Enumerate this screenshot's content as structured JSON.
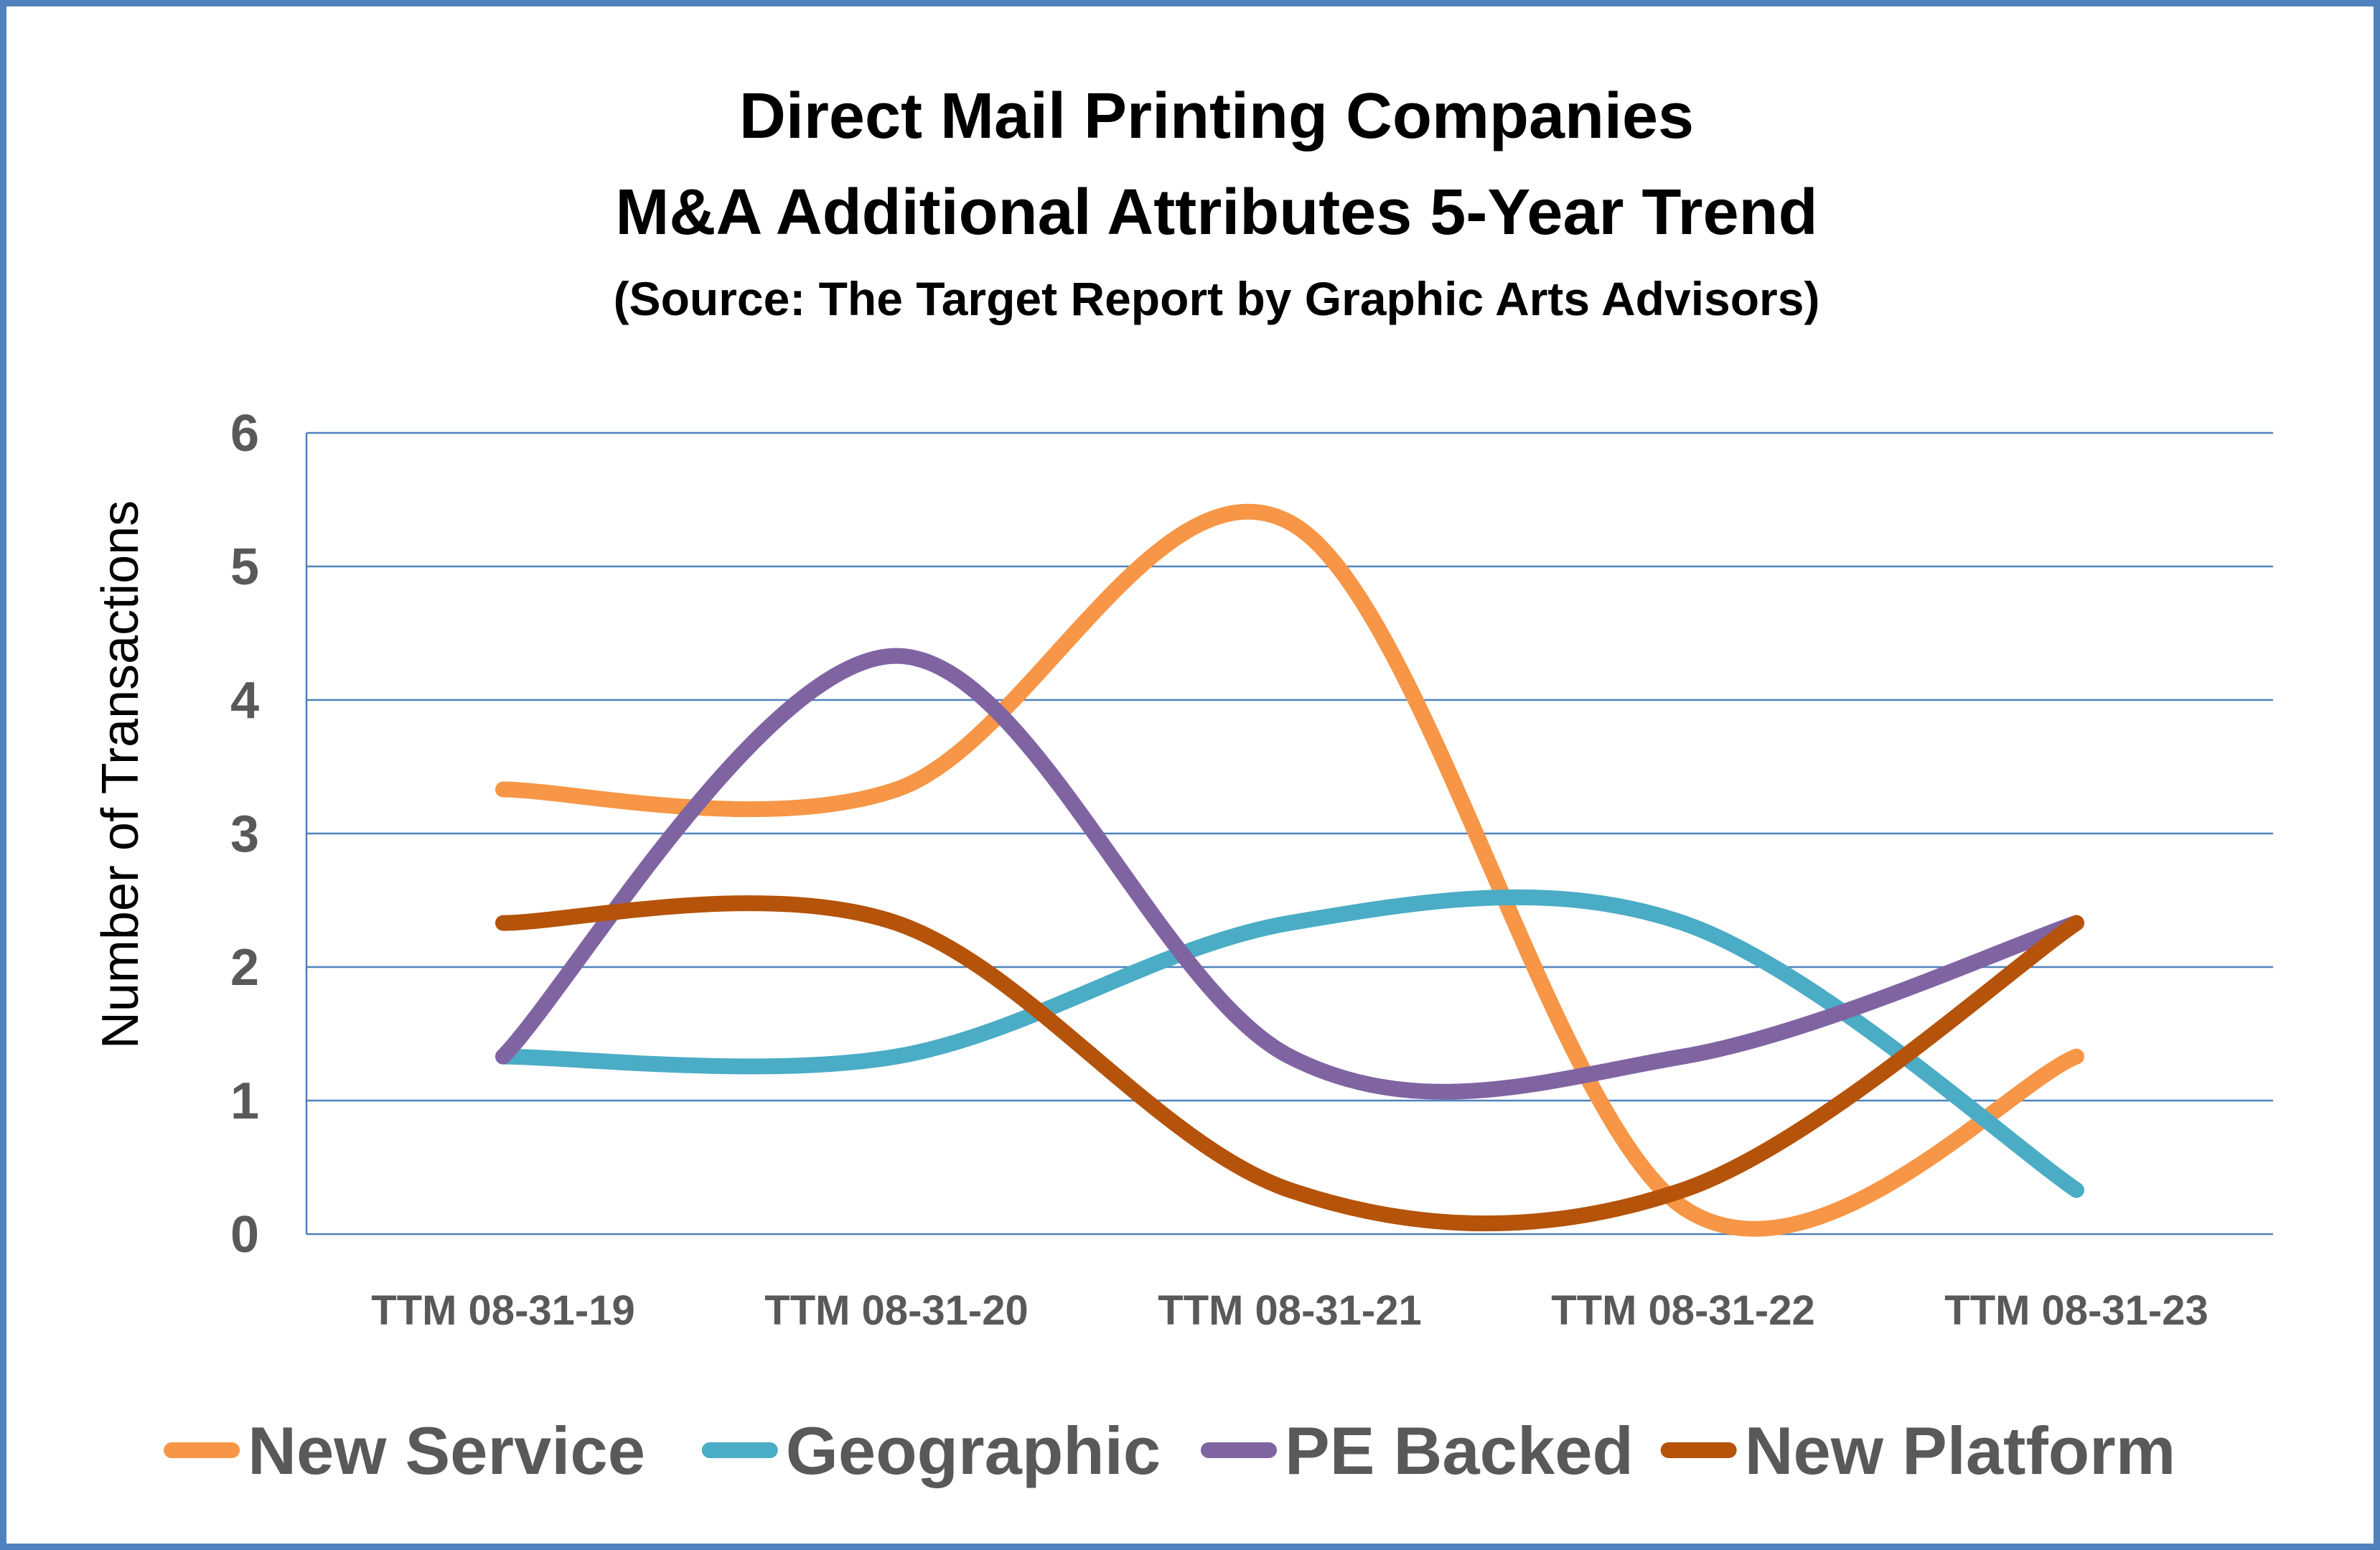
{
  "chart_data": {
    "type": "line",
    "title_line1": "Direct Mail Printing Companies",
    "title_line2": "M&A Additional Attributes 5-Year Trend",
    "subtitle": "(Source: The Target Report by Graphic Arts Advisors)",
    "xlabel": "",
    "ylabel": "Number of Transactions",
    "categories": [
      "TTM 08-31-19",
      "TTM 08-31-20",
      "TTM 08-31-21",
      "TTM 08-31-22",
      "TTM 08-31-23"
    ],
    "y_ticks": [
      "0",
      "1",
      "2",
      "3",
      "4",
      "5",
      "6"
    ],
    "ylim": [
      0,
      6
    ],
    "grid": "horizontal",
    "smooth": true,
    "legend_position": "bottom",
    "series": [
      {
        "name": "New Service",
        "color": "#f79646",
        "values": [
          3.33,
          3.33,
          5.33,
          0.2,
          1.33
        ]
      },
      {
        "name": "Geographic",
        "color": "#4bacc6",
        "values": [
          1.33,
          1.33,
          2.33,
          2.33,
          0.33
        ]
      },
      {
        "name": "PE Backed",
        "color": "#8064a2",
        "values": [
          1.33,
          4.33,
          1.33,
          1.33,
          2.33
        ]
      },
      {
        "name": "New Platform",
        "color": "#b45309",
        "values": [
          2.33,
          2.33,
          0.33,
          0.33,
          2.33
        ]
      }
    ],
    "gridline_color": "#4f81bd",
    "frame_color": "#4f81bd"
  }
}
